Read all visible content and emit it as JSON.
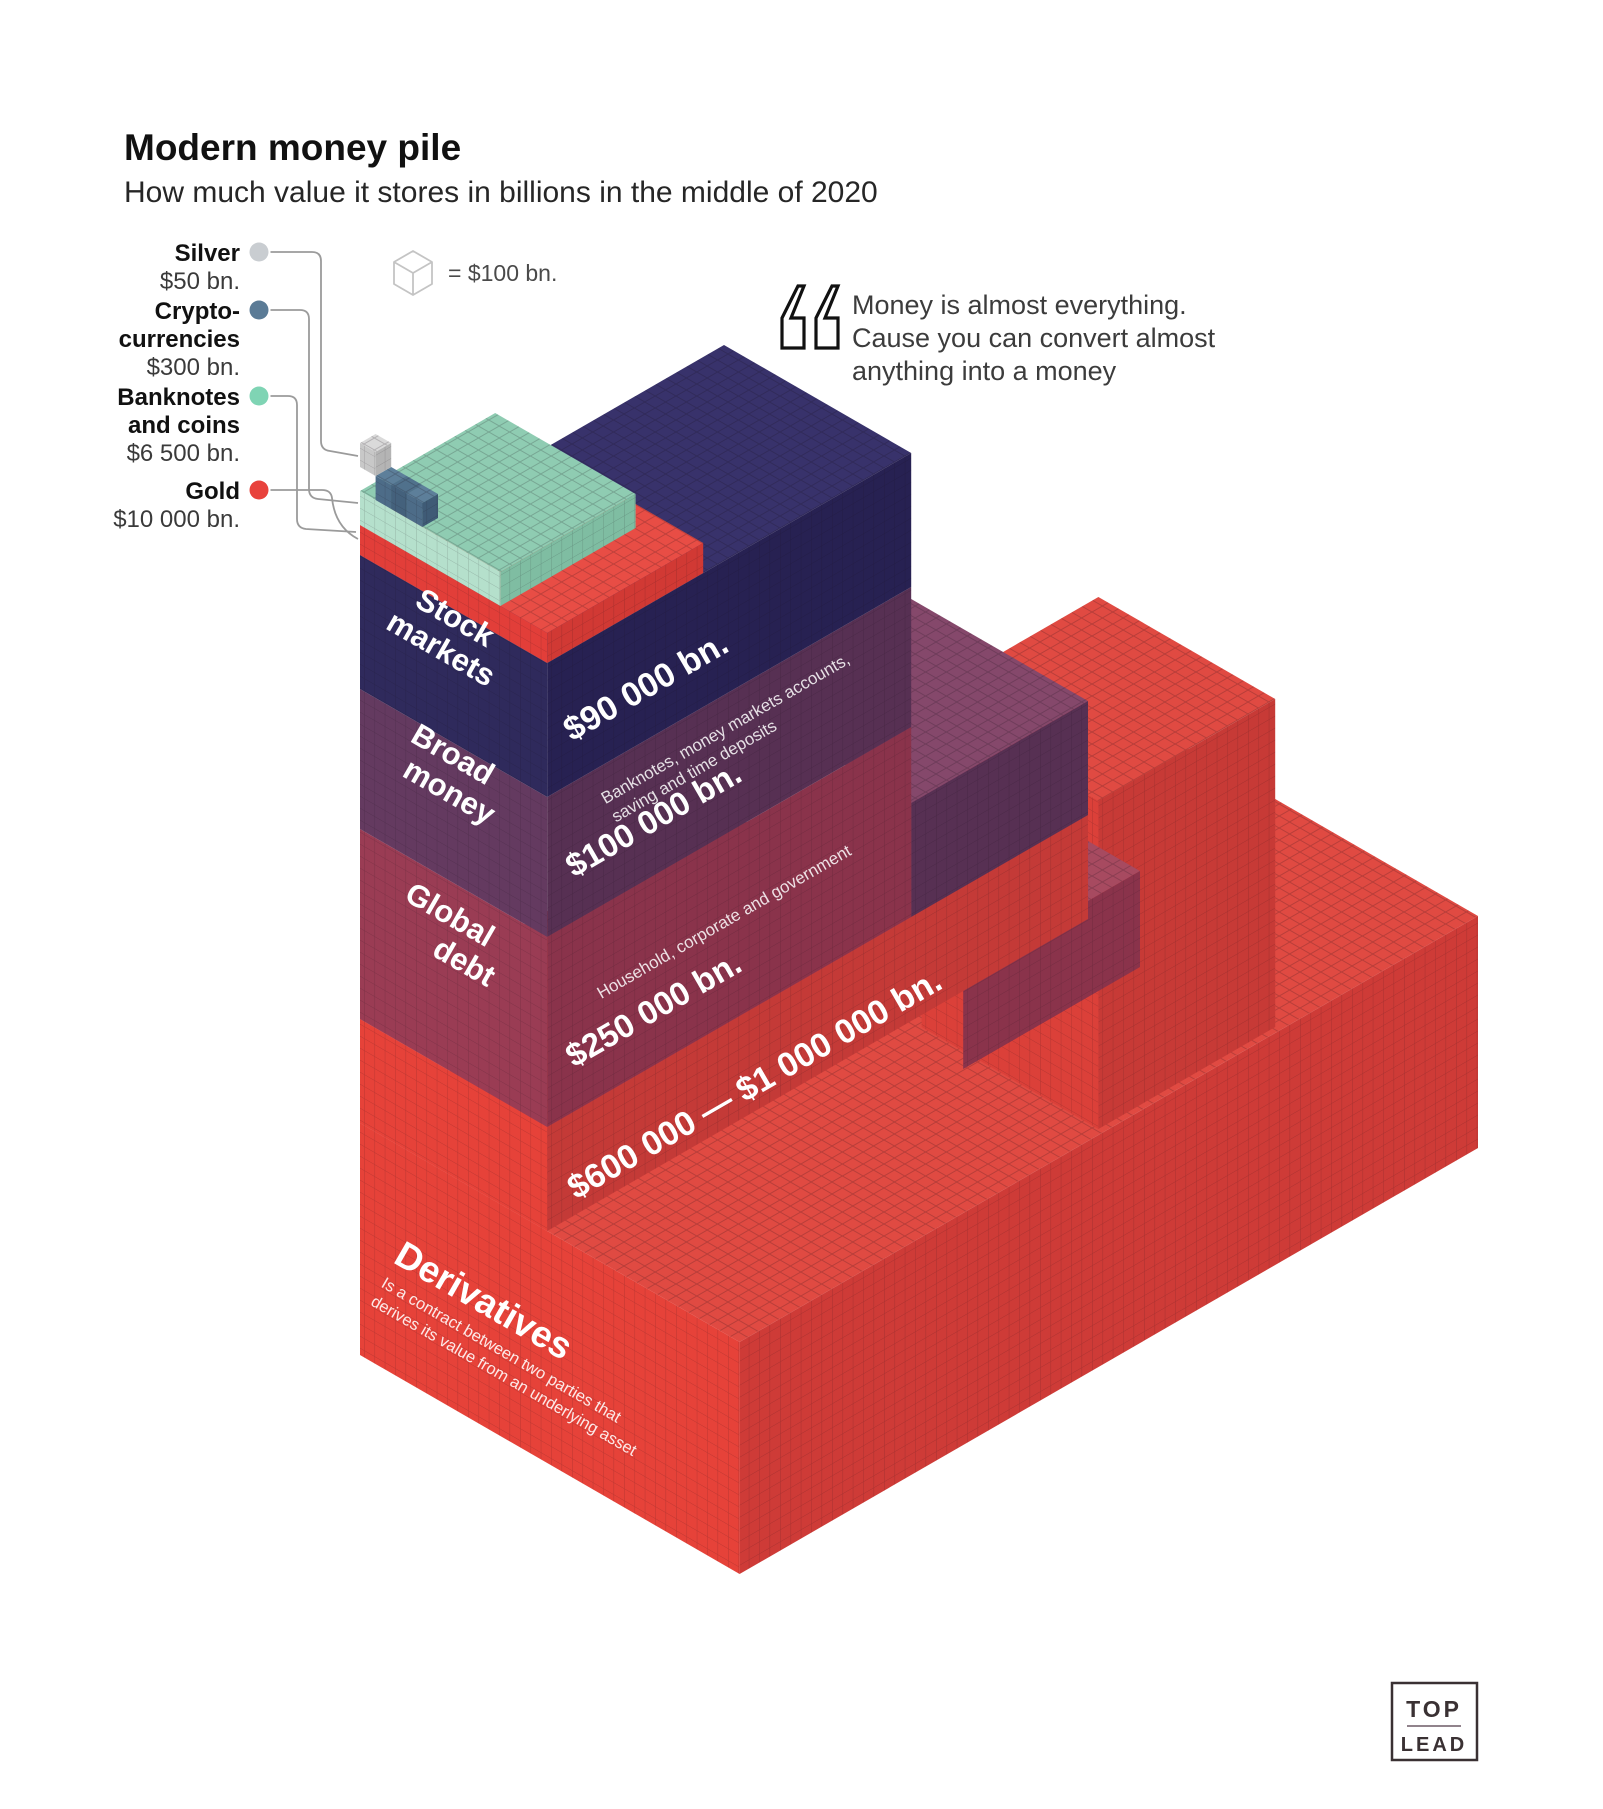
{
  "header": {
    "title": "Modern money pile",
    "subtitle": "How much value it stores in billions in the middle of 2020"
  },
  "unit_legend": {
    "text": "= $100 bn."
  },
  "legend": [
    {
      "id": "silver",
      "name_lines": [
        "Silver",
        ""
      ],
      "value": "$50 bn.",
      "color": "#c9cdd1"
    },
    {
      "id": "cryptocurrencies",
      "name_lines": [
        "Crypto-",
        "currencies"
      ],
      "value": "$300 bn.",
      "color": "#5b7b96"
    },
    {
      "id": "banknotes",
      "name_lines": [
        "Banknotes",
        "and coins"
      ],
      "value": "$6 500 bn.",
      "color": "#7fd4b4"
    },
    {
      "id": "gold",
      "name_lines": [
        "Gold",
        ""
      ],
      "value": "$10 000 bn.",
      "color": "#e8423c"
    }
  ],
  "quote": {
    "lines": [
      "Money is almost everything.",
      "Cause you can convert almost",
      "anything into a money"
    ]
  },
  "pile": {
    "stock_markets": {
      "label_lines": [
        "Stock",
        "markets"
      ],
      "value": "$90 000 bn."
    },
    "broad_money": {
      "label_lines": [
        "Broad",
        "money"
      ],
      "note_lines": [
        "Banknotes, money markets accounts,",
        "saving and time deposits"
      ],
      "value": "$100 000 bn."
    },
    "global_debt": {
      "label_lines": [
        "Global",
        "debt"
      ],
      "note": "Household, corporate and government",
      "value": "$250 000 bn."
    },
    "derivatives": {
      "label": "Derivatives",
      "note_lines": [
        "Is a contract between two parties that",
        "derives its value from an underlying asset"
      ],
      "value": "$600 000 — $1 000 000 bn."
    }
  },
  "logo": {
    "line1": "TOP",
    "line2": "LEAD"
  },
  "chart_data": {
    "type": "isometric-pile",
    "title": "Modern money pile",
    "subtitle": "How much value it stores in billions in the middle of 2020",
    "unit": "1 cube = $100 bn.",
    "layers": [
      {
        "label": "Silver",
        "value_bn": 50,
        "color": "#c9cdd1"
      },
      {
        "label": "Cryptocurrencies",
        "value_bn": 300,
        "color": "#5b7b96"
      },
      {
        "label": "Banknotes and coins",
        "value_bn": 6500,
        "color": "#8fccb2"
      },
      {
        "label": "Gold",
        "value_bn": 10000,
        "color": "#e8423c"
      },
      {
        "label": "Stock markets",
        "value_bn": 90000,
        "color": "#38326b"
      },
      {
        "label": "Broad money",
        "value_bn": 100000,
        "color": "#85486b",
        "note": "Banknotes, money markets accounts, saving and time deposits"
      },
      {
        "label": "Global debt",
        "value_bn": 250000,
        "color": "#a74a60",
        "note": "Household, corporate and government"
      },
      {
        "label": "Derivatives",
        "value_bn_min": 600000,
        "value_bn_max": 1000000,
        "color": "#e04a42",
        "note": "Is a contract between two parties that derives its value from an underlying asset"
      }
    ]
  }
}
